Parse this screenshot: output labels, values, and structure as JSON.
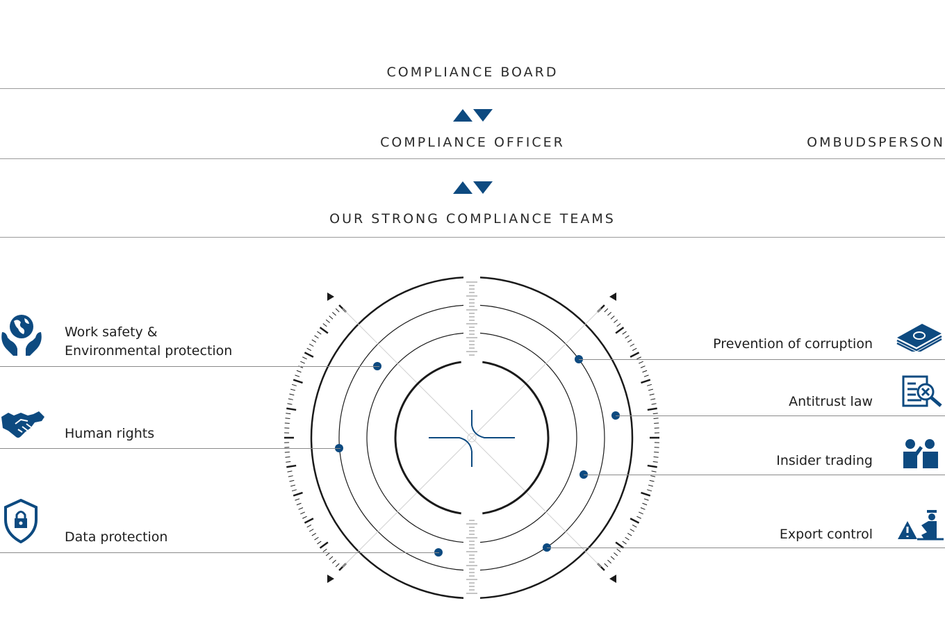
{
  "org": {
    "board": "COMPLIANCE BOARD",
    "officer": "COMPLIANCE OFFICER",
    "ombudsperson": "OMBUDSPERSON",
    "teams": "OUR STRONG COMPLIANCE TEAMS"
  },
  "left_topics": [
    {
      "line1": "Work safety &",
      "line2": "Environmental protection",
      "icon": "globe-in-hands-icon"
    },
    {
      "label": "Human rights",
      "icon": "handshake-icon"
    },
    {
      "label": "Data protection",
      "icon": "shield-lock-icon"
    }
  ],
  "right_topics": [
    {
      "label": "Prevention of corruption",
      "icon": "money-stack-icon"
    },
    {
      "label": "Antitrust law",
      "icon": "document-magnifier-icon"
    },
    {
      "label": "Insider trading",
      "icon": "people-talking-icon"
    },
    {
      "label": "Export control",
      "icon": "warning-customs-icon"
    }
  ],
  "colors": {
    "accent": "#0d4a80",
    "ink": "#1a1a1a",
    "rule": "#9a9a9a"
  }
}
